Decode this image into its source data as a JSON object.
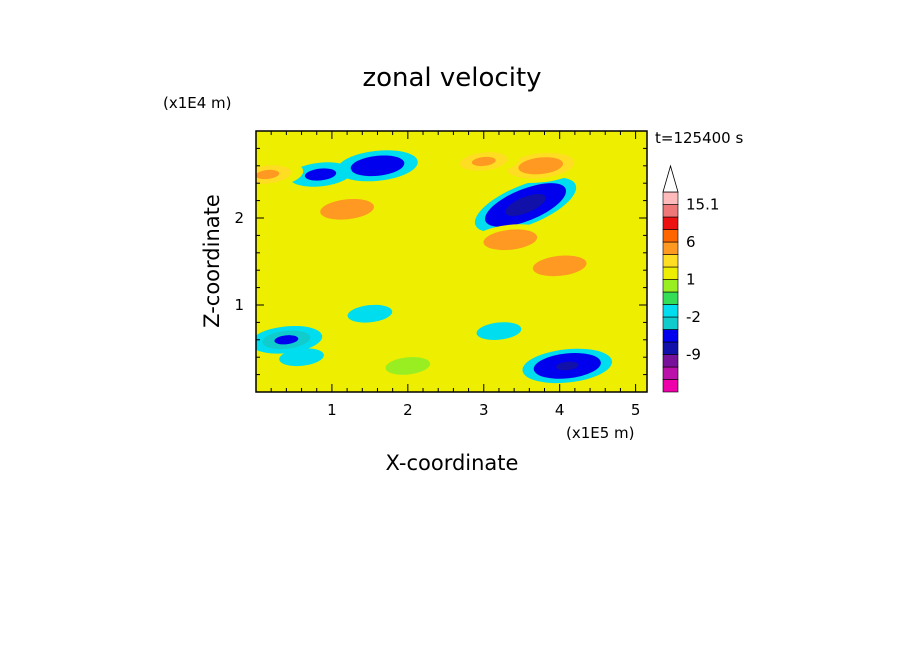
{
  "chart_data": {
    "type": "heatmap",
    "title": "zonal velocity",
    "xlabel": "X-coordinate",
    "ylabel": "Z-coordinate",
    "x_unit": "(x1E5 m)",
    "y_unit": "(x1E4 m)",
    "time_label": "t=125400 s",
    "xlim": [
      0,
      5.15
    ],
    "ylim": [
      0,
      3
    ],
    "x_ticks": [
      "1",
      "2",
      "3",
      "4",
      "5"
    ],
    "x_tick_values": [
      1,
      2,
      3,
      4,
      5
    ],
    "y_ticks": [
      "1",
      "2"
    ],
    "y_tick_values": [
      1,
      2
    ],
    "colorbar": {
      "labels": [
        "15.1",
        "6",
        "1",
        "-2",
        "-9"
      ],
      "label_values": [
        15.1,
        6,
        1,
        -2,
        -9
      ],
      "levels": [
        -15,
        -12,
        -9,
        -6,
        -3,
        -2,
        -1,
        0,
        1,
        2,
        3,
        6,
        9,
        12,
        15.1
      ],
      "colors": [
        "#ee00aa",
        "#bb11aa",
        "#771199",
        "#1111aa",
        "#0000ee",
        "#11cccc",
        "#00ddee",
        "#33dd55",
        "#99ee22",
        "#eeee00",
        "#ffdd22",
        "#ff9922",
        "#ff6600",
        "#ee1111",
        "#ee7777",
        "#ffbbbb",
        "#ffffff"
      ]
    },
    "features": [
      {
        "x": 3.55,
        "z": 2.15,
        "value": -8
      },
      {
        "x": 1.6,
        "z": 2.6,
        "value": -5
      },
      {
        "x": 0.85,
        "z": 2.5,
        "value": -3
      },
      {
        "x": 0.4,
        "z": 0.6,
        "value": -4
      },
      {
        "x": 4.1,
        "z": 0.3,
        "value": -6
      },
      {
        "x": 3.75,
        "z": 2.6,
        "value": 6
      },
      {
        "x": 1.2,
        "z": 2.1,
        "value": 5
      },
      {
        "x": 3.35,
        "z": 1.75,
        "value": 5
      },
      {
        "x": 4.0,
        "z": 1.45,
        "value": 5
      },
      {
        "x": 3.0,
        "z": 2.65,
        "value": 4
      },
      {
        "x": 0.15,
        "z": 2.5,
        "value": 4
      },
      {
        "x": 2.2,
        "z": 1.6,
        "value": 2
      },
      {
        "x": 1.5,
        "z": 0.9,
        "value": -1
      },
      {
        "x": 3.2,
        "z": 0.7,
        "value": -1
      },
      {
        "x": 2.0,
        "z": 0.3,
        "value": 1
      },
      {
        "x": 0.6,
        "z": 0.4,
        "value": -1
      }
    ]
  }
}
